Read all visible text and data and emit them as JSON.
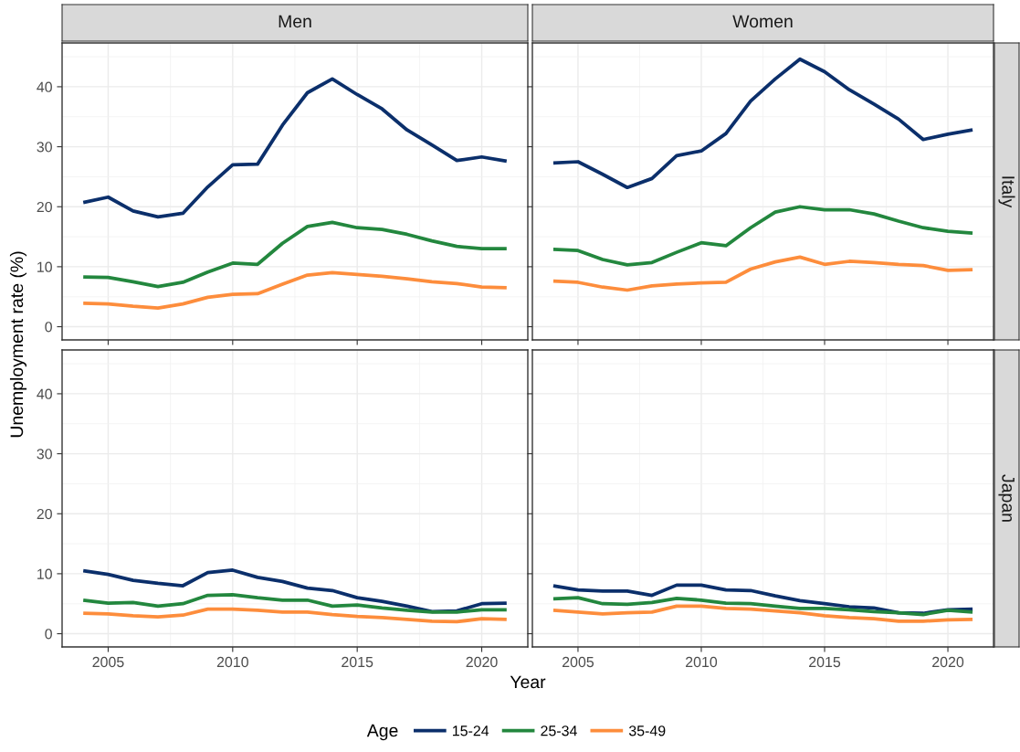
{
  "chart_data": [
    {
      "type": "line",
      "title": "Men",
      "xlabel": "Year",
      "ylabel": "Unemployment rate (%)",
      "legend_title": "Age",
      "legend": "bottom",
      "grid": true,
      "tick_labels": "y",
      "x": [
        2004,
        2005,
        2006,
        2007,
        2008,
        2009,
        2010,
        2011,
        2012,
        2013,
        2014,
        2015,
        2016,
        2017,
        2018,
        2019,
        2020,
        2021
      ],
      "xlim": [
        2003.15,
        2021.85
      ],
      "ylim": [
        -2.2,
        47.3
      ],
      "xticks": [
        2005,
        2010,
        2015,
        2020
      ],
      "yticks": [
        0,
        10,
        20,
        30,
        40
      ],
      "series": [
        {
          "name": "15-24",
          "color": "#0b2f6b",
          "values": [
            20.7,
            21.6,
            19.3,
            18.3,
            18.9,
            23.3,
            27.0,
            27.1,
            33.6,
            39.0,
            41.3,
            38.7,
            36.3,
            32.8,
            30.3,
            27.7,
            28.3,
            27.6
          ]
        },
        {
          "name": "25-34",
          "color": "#23873e",
          "values": [
            8.3,
            8.2,
            7.5,
            6.7,
            7.4,
            9.1,
            10.6,
            10.4,
            13.9,
            16.7,
            17.4,
            16.5,
            16.2,
            15.4,
            14.3,
            13.4,
            13.0,
            13.0
          ]
        },
        {
          "name": "35-49",
          "color": "#fd8d3c",
          "values": [
            3.9,
            3.8,
            3.4,
            3.1,
            3.8,
            4.9,
            5.4,
            5.5,
            7.1,
            8.6,
            9.0,
            8.7,
            8.4,
            8.0,
            7.5,
            7.2,
            6.6,
            6.5
          ]
        }
      ]
    },
    {
      "type": "line",
      "title": "Women",
      "subtitle": "Italy",
      "grid": true,
      "tick_labels": false,
      "x": [
        2004,
        2005,
        2006,
        2007,
        2008,
        2009,
        2010,
        2011,
        2012,
        2013,
        2014,
        2015,
        2016,
        2017,
        2018,
        2019,
        2020,
        2021
      ],
      "xlim": [
        2003.15,
        2021.85
      ],
      "ylim": [
        -2.2,
        47.3
      ],
      "xticks": [
        2005,
        2010,
        2015,
        2020
      ],
      "yticks": [
        0,
        10,
        20,
        30,
        40
      ],
      "series": [
        {
          "color": "#0b2f6b",
          "values": [
            27.3,
            27.5,
            25.4,
            23.2,
            24.7,
            28.5,
            29.3,
            32.2,
            37.6,
            41.3,
            44.6,
            42.5,
            39.5,
            37.1,
            34.6,
            31.2,
            32.1,
            32.8
          ]
        },
        {
          "color": "#23873e",
          "values": [
            12.9,
            12.7,
            11.2,
            10.3,
            10.7,
            12.4,
            14.0,
            13.5,
            16.5,
            19.1,
            20.0,
            19.5,
            19.5,
            18.8,
            17.6,
            16.5,
            15.9,
            15.6
          ]
        },
        {
          "color": "#fd8d3c",
          "values": [
            7.6,
            7.4,
            6.6,
            6.1,
            6.8,
            7.1,
            7.3,
            7.4,
            9.6,
            10.8,
            11.6,
            10.4,
            10.9,
            10.7,
            10.4,
            10.2,
            9.4,
            9.5
          ]
        }
      ]
    },
    {
      "type": "line",
      "grid": true,
      "x": [
        2004,
        2005,
        2006,
        2007,
        2008,
        2009,
        2010,
        2011,
        2012,
        2013,
        2014,
        2015,
        2016,
        2017,
        2018,
        2019,
        2020,
        2021
      ],
      "xlim": [
        2003.15,
        2021.85
      ],
      "ylim": [
        -2.2,
        47.3
      ],
      "xticks": [
        2005,
        2010,
        2015,
        2020
      ],
      "yticks": [
        0,
        10,
        20,
        30,
        40
      ],
      "series": [
        {
          "color": "#0b2f6b",
          "values": [
            10.5,
            9.9,
            8.9,
            8.4,
            8.0,
            10.2,
            10.6,
            9.4,
            8.7,
            7.6,
            7.2,
            6.0,
            5.4,
            4.6,
            3.7,
            3.8,
            5.0,
            5.1
          ]
        },
        {
          "color": "#23873e",
          "values": [
            5.6,
            5.1,
            5.2,
            4.6,
            5.0,
            6.4,
            6.5,
            6.0,
            5.6,
            5.6,
            4.6,
            4.8,
            4.3,
            3.9,
            3.6,
            3.6,
            4.0,
            4.0
          ]
        },
        {
          "color": "#fd8d3c",
          "values": [
            3.4,
            3.3,
            3.0,
            2.8,
            3.1,
            4.1,
            4.1,
            3.9,
            3.6,
            3.6,
            3.2,
            2.9,
            2.7,
            2.4,
            2.1,
            2.0,
            2.5,
            2.4
          ]
        }
      ]
    },
    {
      "type": "line",
      "subtitle": "Japan",
      "grid": true,
      "tick_labels": "x",
      "x": [
        2004,
        2005,
        2006,
        2007,
        2008,
        2009,
        2010,
        2011,
        2012,
        2013,
        2014,
        2015,
        2016,
        2017,
        2018,
        2019,
        2020,
        2021
      ],
      "xlim": [
        2003.15,
        2021.85
      ],
      "ylim": [
        -2.2,
        47.3
      ],
      "xticks": [
        2005,
        2010,
        2015,
        2020
      ],
      "yticks": [
        0,
        10,
        20,
        30,
        40
      ],
      "series": [
        {
          "color": "#0b2f6b",
          "values": [
            8.0,
            7.3,
            7.1,
            7.1,
            6.4,
            8.1,
            8.1,
            7.3,
            7.2,
            6.3,
            5.5,
            5.0,
            4.5,
            4.3,
            3.5,
            3.4,
            4.0,
            4.1
          ]
        },
        {
          "color": "#23873e",
          "values": [
            5.8,
            6.0,
            5.0,
            4.9,
            5.2,
            5.9,
            5.6,
            5.1,
            5.0,
            4.6,
            4.2,
            4.2,
            4.0,
            3.7,
            3.5,
            3.2,
            3.9,
            3.6
          ]
        },
        {
          "color": "#fd8d3c",
          "values": [
            3.9,
            3.6,
            3.3,
            3.5,
            3.6,
            4.6,
            4.6,
            4.2,
            4.1,
            3.8,
            3.5,
            3.0,
            2.7,
            2.5,
            2.1,
            2.1,
            2.3,
            2.4
          ]
        }
      ]
    }
  ]
}
